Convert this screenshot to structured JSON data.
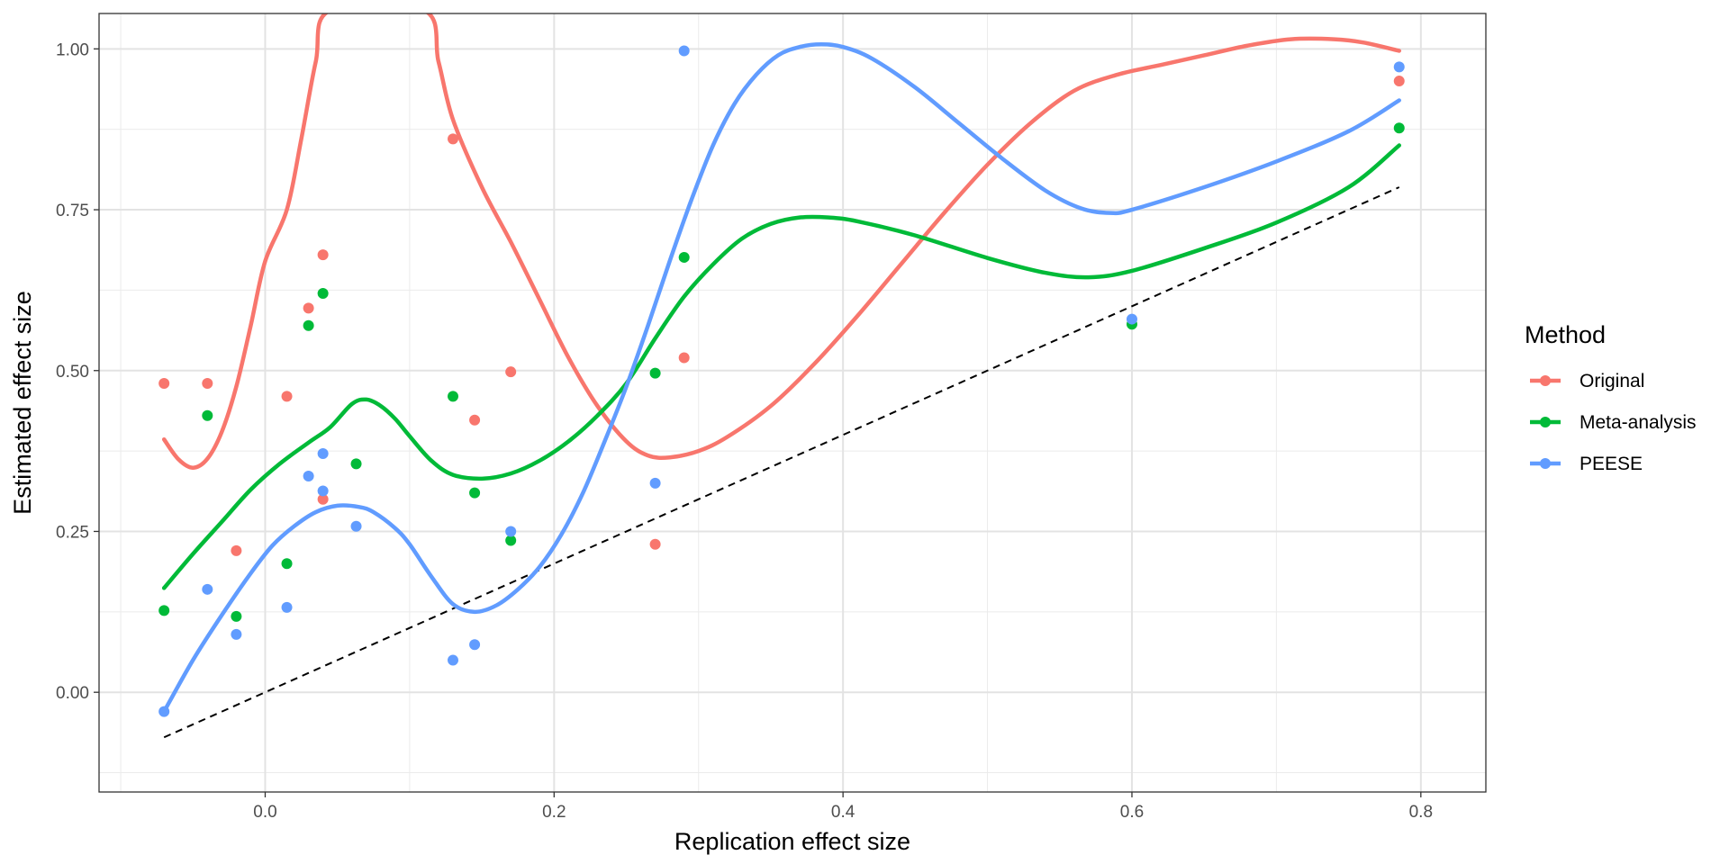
{
  "chart_data": {
    "type": "scatter",
    "title": "",
    "xlabel": "Replication effect size",
    "ylabel": "Estimated effect size",
    "xlim": [
      -0.115,
      0.845
    ],
    "ylim": [
      -0.155,
      1.055
    ],
    "x_ticks": [
      0.0,
      0.2,
      0.4,
      0.6,
      0.8
    ],
    "x_tick_labels": [
      "0.0",
      "0.2",
      "0.4",
      "0.6",
      "0.8"
    ],
    "y_ticks": [
      0.0,
      0.25,
      0.5,
      0.75,
      1.0
    ],
    "y_tick_labels": [
      "0.00",
      "0.25",
      "0.50",
      "0.75",
      "1.00"
    ],
    "grid": true,
    "legend": {
      "title": "Method",
      "placement": "right",
      "entries": [
        "Original",
        "Meta-analysis",
        "PEESE"
      ]
    },
    "reference_line": {
      "style": "dashed",
      "color": "#000000",
      "x": [
        -0.07,
        0.785
      ],
      "y": [
        -0.07,
        0.785
      ]
    },
    "series": [
      {
        "name": "Original",
        "color": "#F8766D",
        "points": [
          [
            -0.07,
            0.48
          ],
          [
            -0.04,
            0.48
          ],
          [
            -0.02,
            0.22
          ],
          [
            0.015,
            0.46
          ],
          [
            0.03,
            0.597
          ],
          [
            0.04,
            0.68
          ],
          [
            0.04,
            0.3
          ],
          [
            0.13,
            0.86
          ],
          [
            0.145,
            0.423
          ],
          [
            0.17,
            0.498
          ],
          [
            0.27,
            0.23
          ],
          [
            0.29,
            0.52
          ],
          [
            0.785,
            0.95
          ]
        ],
        "smooth": [
          [
            -0.07,
            0.393
          ],
          [
            -0.06,
            0.362
          ],
          [
            -0.05,
            0.349
          ],
          [
            -0.04,
            0.363
          ],
          [
            -0.03,
            0.405
          ],
          [
            -0.02,
            0.475
          ],
          [
            -0.01,
            0.57
          ],
          [
            0.0,
            0.67
          ],
          [
            0.015,
            0.75
          ],
          [
            0.025,
            0.86
          ],
          [
            0.035,
            0.98
          ],
          [
            0.045,
            1.06
          ],
          [
            0.11,
            1.06
          ],
          [
            0.12,
            0.98
          ],
          [
            0.13,
            0.89
          ],
          [
            0.15,
            0.785
          ],
          [
            0.17,
            0.7
          ],
          [
            0.19,
            0.61
          ],
          [
            0.21,
            0.52
          ],
          [
            0.23,
            0.445
          ],
          [
            0.25,
            0.39
          ],
          [
            0.265,
            0.368
          ],
          [
            0.28,
            0.365
          ],
          [
            0.3,
            0.375
          ],
          [
            0.32,
            0.397
          ],
          [
            0.35,
            0.445
          ],
          [
            0.38,
            0.51
          ],
          [
            0.41,
            0.585
          ],
          [
            0.44,
            0.665
          ],
          [
            0.47,
            0.745
          ],
          [
            0.5,
            0.82
          ],
          [
            0.53,
            0.885
          ],
          [
            0.56,
            0.935
          ],
          [
            0.59,
            0.96
          ],
          [
            0.62,
            0.975
          ],
          [
            0.65,
            0.99
          ],
          [
            0.68,
            1.005
          ],
          [
            0.71,
            1.015
          ],
          [
            0.74,
            1.015
          ],
          [
            0.76,
            1.01
          ],
          [
            0.785,
            0.997
          ]
        ]
      },
      {
        "name": "Meta-analysis",
        "color": "#00BA38",
        "points": [
          [
            -0.07,
            0.127
          ],
          [
            -0.04,
            0.43
          ],
          [
            -0.02,
            0.118
          ],
          [
            0.015,
            0.2
          ],
          [
            0.03,
            0.57
          ],
          [
            0.04,
            0.62
          ],
          [
            0.063,
            0.355
          ],
          [
            0.13,
            0.46
          ],
          [
            0.145,
            0.31
          ],
          [
            0.17,
            0.236
          ],
          [
            0.27,
            0.496
          ],
          [
            0.29,
            0.676
          ],
          [
            0.6,
            0.572
          ],
          [
            0.785,
            0.877
          ]
        ],
        "smooth": [
          [
            -0.07,
            0.162
          ],
          [
            -0.05,
            0.215
          ],
          [
            -0.03,
            0.265
          ],
          [
            -0.01,
            0.315
          ],
          [
            0.01,
            0.355
          ],
          [
            0.03,
            0.388
          ],
          [
            0.045,
            0.412
          ],
          [
            0.06,
            0.448
          ],
          [
            0.07,
            0.455
          ],
          [
            0.08,
            0.445
          ],
          [
            0.09,
            0.425
          ],
          [
            0.1,
            0.398
          ],
          [
            0.115,
            0.36
          ],
          [
            0.13,
            0.338
          ],
          [
            0.15,
            0.332
          ],
          [
            0.17,
            0.34
          ],
          [
            0.19,
            0.36
          ],
          [
            0.21,
            0.39
          ],
          [
            0.23,
            0.43
          ],
          [
            0.25,
            0.48
          ],
          [
            0.27,
            0.55
          ],
          [
            0.29,
            0.615
          ],
          [
            0.31,
            0.665
          ],
          [
            0.33,
            0.705
          ],
          [
            0.35,
            0.728
          ],
          [
            0.37,
            0.738
          ],
          [
            0.39,
            0.738
          ],
          [
            0.41,
            0.732
          ],
          [
            0.45,
            0.71
          ],
          [
            0.5,
            0.675
          ],
          [
            0.54,
            0.652
          ],
          [
            0.57,
            0.645
          ],
          [
            0.6,
            0.655
          ],
          [
            0.65,
            0.69
          ],
          [
            0.7,
            0.73
          ],
          [
            0.75,
            0.785
          ],
          [
            0.785,
            0.85
          ]
        ]
      },
      {
        "name": "PEESE",
        "color": "#619CFF",
        "points": [
          [
            -0.07,
            -0.03
          ],
          [
            -0.04,
            0.16
          ],
          [
            -0.02,
            0.09
          ],
          [
            0.015,
            0.132
          ],
          [
            0.03,
            0.336
          ],
          [
            0.04,
            0.371
          ],
          [
            0.04,
            0.313
          ],
          [
            0.063,
            0.258
          ],
          [
            0.13,
            0.05
          ],
          [
            0.145,
            0.074
          ],
          [
            0.17,
            0.25
          ],
          [
            0.27,
            0.325
          ],
          [
            0.29,
            0.997
          ],
          [
            0.6,
            0.58
          ],
          [
            0.785,
            0.972
          ]
        ],
        "smooth": [
          [
            -0.07,
            -0.03
          ],
          [
            -0.05,
            0.05
          ],
          [
            -0.03,
            0.12
          ],
          [
            -0.01,
            0.185
          ],
          [
            0.005,
            0.228
          ],
          [
            0.02,
            0.258
          ],
          [
            0.035,
            0.28
          ],
          [
            0.05,
            0.29
          ],
          [
            0.065,
            0.288
          ],
          [
            0.075,
            0.28
          ],
          [
            0.09,
            0.255
          ],
          [
            0.1,
            0.23
          ],
          [
            0.115,
            0.18
          ],
          [
            0.13,
            0.137
          ],
          [
            0.145,
            0.125
          ],
          [
            0.16,
            0.135
          ],
          [
            0.175,
            0.16
          ],
          [
            0.19,
            0.195
          ],
          [
            0.205,
            0.245
          ],
          [
            0.22,
            0.31
          ],
          [
            0.235,
            0.39
          ],
          [
            0.25,
            0.475
          ],
          [
            0.265,
            0.57
          ],
          [
            0.28,
            0.67
          ],
          [
            0.295,
            0.765
          ],
          [
            0.31,
            0.85
          ],
          [
            0.325,
            0.915
          ],
          [
            0.34,
            0.96
          ],
          [
            0.355,
            0.99
          ],
          [
            0.37,
            1.003
          ],
          [
            0.385,
            1.007
          ],
          [
            0.4,
            1.003
          ],
          [
            0.42,
            0.985
          ],
          [
            0.45,
            0.94
          ],
          [
            0.48,
            0.885
          ],
          [
            0.51,
            0.83
          ],
          [
            0.54,
            0.78
          ],
          [
            0.565,
            0.752
          ],
          [
            0.585,
            0.745
          ],
          [
            0.6,
            0.75
          ],
          [
            0.65,
            0.785
          ],
          [
            0.7,
            0.825
          ],
          [
            0.75,
            0.872
          ],
          [
            0.785,
            0.92
          ]
        ]
      }
    ]
  }
}
